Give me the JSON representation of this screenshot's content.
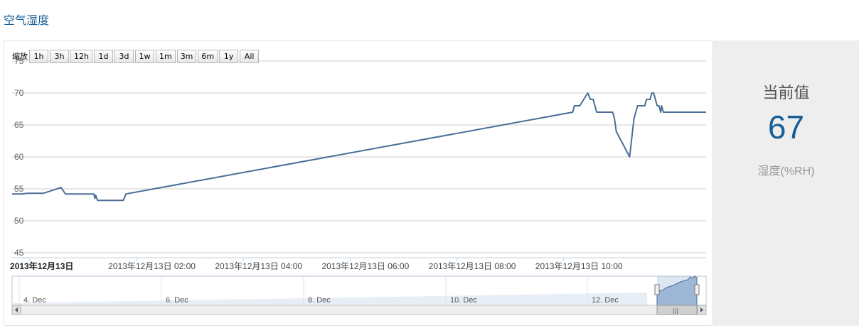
{
  "page": {
    "section_title": "空气湿度"
  },
  "current": {
    "title": "当前值",
    "value": "67",
    "unit": "湿度(%RH)"
  },
  "zoom": {
    "label": "缩放",
    "buttons": [
      "1h",
      "3h",
      "12h",
      "1d",
      "3d",
      "1w",
      "1m",
      "3m",
      "6m",
      "1y",
      "All"
    ]
  },
  "navigator": {
    "labels": [
      "4. Dec",
      "6. Dec",
      "8. Dec",
      "10. Dec",
      "12. Dec"
    ],
    "scroll_grip": "|||"
  },
  "colors": {
    "series": "#4a6e97",
    "navigator_fill": "#9eb7d6",
    "accent": "#1a5e96"
  },
  "chart_data": {
    "type": "line",
    "title": "",
    "xlabel": "",
    "ylabel": "",
    "ylim": [
      45,
      75
    ],
    "y_ticks": [
      "45",
      "50",
      "55",
      "60",
      "65",
      "70",
      "75"
    ],
    "xlim": [
      "2013-12-12 23:40",
      "2013-12-13 12:40"
    ],
    "x_ticks": [
      {
        "label": "2013年12月13日",
        "bold": true,
        "t": "2013-12-13 00:00"
      },
      {
        "label": "2013年12月13日 02:00",
        "bold": false,
        "t": "2013-12-13 02:00"
      },
      {
        "label": "2013年12月13日 04:00",
        "bold": false,
        "t": "2013-12-13 04:00"
      },
      {
        "label": "2013年12月13日 06:00",
        "bold": false,
        "t": "2013-12-13 06:00"
      },
      {
        "label": "2013年12月13日 08:00",
        "bold": false,
        "t": "2013-12-13 08:00"
      },
      {
        "label": "2013年12月13日 10:00",
        "bold": false,
        "t": "2013-12-13 10:00"
      }
    ],
    "grid": true,
    "legend": "none",
    "series": [
      {
        "points": [
          [
            "2013-12-12 23:40",
            54.2
          ],
          [
            "2013-12-12 23:46",
            54.2
          ],
          [
            "2013-12-12 23:51",
            54.2
          ],
          [
            "2013-12-12 23:57",
            54.3
          ],
          [
            "2013-12-13 00:15",
            54.3
          ],
          [
            "2013-12-13 00:35",
            55.2
          ],
          [
            "2013-12-13 00:40",
            54.2
          ],
          [
            "2013-12-13 01:12",
            54.2
          ],
          [
            "2013-12-13 01:13",
            53.5
          ],
          [
            "2013-12-13 01:14",
            54.0
          ],
          [
            "2013-12-13 01:16",
            53.2
          ],
          [
            "2013-12-13 01:45",
            53.2
          ],
          [
            "2013-12-13 01:48",
            54.2
          ],
          [
            "2013-12-13 10:10",
            67.0
          ],
          [
            "2013-12-13 10:12",
            68.0
          ],
          [
            "2013-12-13 10:18",
            68.0
          ],
          [
            "2013-12-13 10:27",
            70.0
          ],
          [
            "2013-12-13 10:30",
            69.0
          ],
          [
            "2013-12-13 10:33",
            69.0
          ],
          [
            "2013-12-13 10:37",
            67.0
          ],
          [
            "2013-12-13 10:55",
            67.0
          ],
          [
            "2013-12-13 10:57",
            66.0
          ],
          [
            "2013-12-13 10:59",
            64.0
          ],
          [
            "2013-12-13 11:14",
            60.0
          ],
          [
            "2013-12-13 11:19",
            66.0
          ],
          [
            "2013-12-13 11:21",
            67.0
          ],
          [
            "2013-12-13 11:23",
            68.0
          ],
          [
            "2013-12-13 11:31",
            68.0
          ],
          [
            "2013-12-13 11:33",
            69.0
          ],
          [
            "2013-12-13 11:37",
            69.0
          ],
          [
            "2013-12-13 11:39",
            70.0
          ],
          [
            "2013-12-13 11:41",
            70.0
          ],
          [
            "2013-12-13 11:43",
            69.0
          ],
          [
            "2013-12-13 11:45",
            68.0
          ],
          [
            "2013-12-13 11:47",
            68.0
          ],
          [
            "2013-12-13 11:49",
            67.0
          ],
          [
            "2013-12-13 11:50",
            68.0
          ],
          [
            "2013-12-13 11:52",
            67.0
          ],
          [
            "2013-12-13 12:40",
            67.0
          ]
        ]
      }
    ]
  }
}
